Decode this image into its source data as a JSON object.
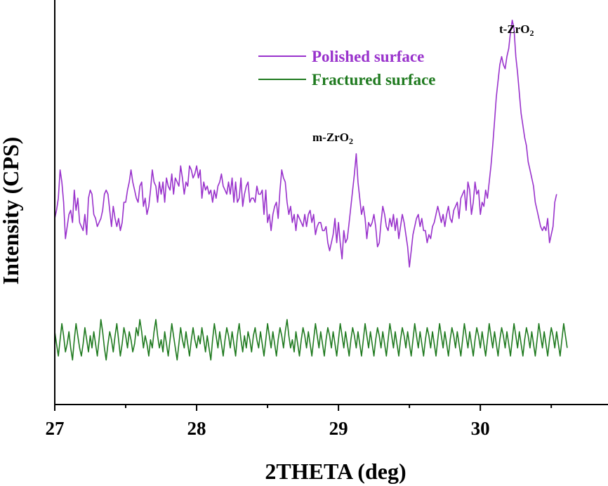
{
  "chart_data": {
    "type": "line",
    "title": "",
    "xlabel": "2THETA (deg)",
    "ylabel": "Intensity (CPS)",
    "xlim": [
      27,
      30.9
    ],
    "ylim": [
      0,
      1
    ],
    "x_ticks": [
      "27",
      "28",
      "29",
      "30"
    ],
    "y_ticks_shown": false,
    "grid": false,
    "legend_position": "top-center",
    "annotations": [
      {
        "text": "m-ZrO",
        "subscript": "2",
        "x": 29.0,
        "y": 0.67
      },
      {
        "text": "t-ZrO",
        "subscript": "2",
        "x": 30.3,
        "y": 0.97
      }
    ],
    "series": [
      {
        "name": "Polished surface",
        "color": "#9932CC",
        "x_start": 27.0,
        "x_step": 0.0125,
        "values": [
          0.46,
          0.48,
          0.51,
          0.58,
          0.55,
          0.5,
          0.41,
          0.44,
          0.47,
          0.48,
          0.45,
          0.53,
          0.48,
          0.51,
          0.45,
          0.44,
          0.43,
          0.47,
          0.42,
          0.51,
          0.53,
          0.52,
          0.47,
          0.46,
          0.44,
          0.45,
          0.46,
          0.48,
          0.52,
          0.53,
          0.52,
          0.48,
          0.44,
          0.49,
          0.46,
          0.44,
          0.46,
          0.43,
          0.45,
          0.5,
          0.5,
          0.53,
          0.55,
          0.58,
          0.55,
          0.53,
          0.51,
          0.5,
          0.54,
          0.55,
          0.49,
          0.51,
          0.47,
          0.49,
          0.53,
          0.58,
          0.55,
          0.54,
          0.5,
          0.55,
          0.52,
          0.55,
          0.5,
          0.56,
          0.54,
          0.53,
          0.57,
          0.52,
          0.56,
          0.55,
          0.54,
          0.59,
          0.56,
          0.52,
          0.55,
          0.54,
          0.59,
          0.58,
          0.56,
          0.57,
          0.59,
          0.56,
          0.58,
          0.51,
          0.55,
          0.53,
          0.54,
          0.52,
          0.53,
          0.5,
          0.53,
          0.51,
          0.54,
          0.55,
          0.57,
          0.54,
          0.53,
          0.52,
          0.55,
          0.52,
          0.56,
          0.5,
          0.55,
          0.5,
          0.51,
          0.56,
          0.49,
          0.52,
          0.54,
          0.55,
          0.5,
          0.51,
          0.51,
          0.5,
          0.54,
          0.52,
          0.52,
          0.53,
          0.47,
          0.53,
          0.45,
          0.47,
          0.43,
          0.47,
          0.49,
          0.5,
          0.46,
          0.53,
          0.58,
          0.56,
          0.55,
          0.5,
          0.47,
          0.49,
          0.45,
          0.47,
          0.43,
          0.47,
          0.46,
          0.45,
          0.44,
          0.47,
          0.44,
          0.47,
          0.48,
          0.45,
          0.47,
          0.42,
          0.44,
          0.45,
          0.45,
          0.43,
          0.43,
          0.44,
          0.4,
          0.38,
          0.4,
          0.42,
          0.46,
          0.4,
          0.45,
          0.4,
          0.36,
          0.43,
          0.4,
          0.41,
          0.45,
          0.49,
          0.53,
          0.57,
          0.62,
          0.55,
          0.51,
          0.47,
          0.49,
          0.46,
          0.41,
          0.45,
          0.44,
          0.45,
          0.47,
          0.44,
          0.39,
          0.4,
          0.45,
          0.49,
          0.47,
          0.44,
          0.43,
          0.46,
          0.44,
          0.47,
          0.43,
          0.46,
          0.41,
          0.44,
          0.47,
          0.45,
          0.42,
          0.39,
          0.34,
          0.38,
          0.42,
          0.44,
          0.46,
          0.47,
          0.44,
          0.46,
          0.43,
          0.43,
          0.4,
          0.42,
          0.41,
          0.44,
          0.45,
          0.47,
          0.49,
          0.47,
          0.45,
          0.47,
          0.44,
          0.47,
          0.49,
          0.46,
          0.45,
          0.48,
          0.49,
          0.5,
          0.46,
          0.51,
          0.52,
          0.53,
          0.48,
          0.55,
          0.53,
          0.47,
          0.5,
          0.55,
          0.52,
          0.53,
          0.47,
          0.5,
          0.49,
          0.53,
          0.51,
          0.55,
          0.59,
          0.64,
          0.7,
          0.76,
          0.8,
          0.84,
          0.86,
          0.84,
          0.83,
          0.86,
          0.88,
          0.92,
          0.95,
          0.93,
          0.86,
          0.82,
          0.77,
          0.72,
          0.69,
          0.66,
          0.64,
          0.6,
          0.58,
          0.56,
          0.54,
          0.5,
          0.48,
          0.46,
          0.44,
          0.43,
          0.44,
          0.43,
          0.46,
          0.4,
          0.42,
          0.44,
          0.5,
          0.52
        ]
      },
      {
        "name": "Fractured surface",
        "color": "#1F7A1F",
        "x_start": 27.0,
        "x_step": 0.0125,
        "values": [
          0.18,
          0.15,
          0.12,
          0.16,
          0.2,
          0.17,
          0.13,
          0.15,
          0.18,
          0.14,
          0.11,
          0.16,
          0.2,
          0.17,
          0.14,
          0.12,
          0.15,
          0.19,
          0.16,
          0.13,
          0.17,
          0.14,
          0.18,
          0.15,
          0.12,
          0.16,
          0.21,
          0.18,
          0.14,
          0.11,
          0.15,
          0.18,
          0.16,
          0.13,
          0.17,
          0.2,
          0.16,
          0.12,
          0.15,
          0.19,
          0.17,
          0.14,
          0.18,
          0.16,
          0.13,
          0.15,
          0.19,
          0.17,
          0.21,
          0.18,
          0.14,
          0.17,
          0.15,
          0.12,
          0.16,
          0.14,
          0.18,
          0.21,
          0.17,
          0.14,
          0.16,
          0.13,
          0.18,
          0.15,
          0.12,
          0.16,
          0.2,
          0.17,
          0.14,
          0.11,
          0.15,
          0.19,
          0.16,
          0.14,
          0.18,
          0.15,
          0.12,
          0.16,
          0.19,
          0.16,
          0.14,
          0.17,
          0.15,
          0.19,
          0.16,
          0.13,
          0.17,
          0.14,
          0.11,
          0.16,
          0.2,
          0.17,
          0.14,
          0.18,
          0.15,
          0.12,
          0.16,
          0.19,
          0.17,
          0.14,
          0.18,
          0.15,
          0.12,
          0.17,
          0.2,
          0.16,
          0.13,
          0.17,
          0.14,
          0.18,
          0.16,
          0.13,
          0.17,
          0.19,
          0.16,
          0.14,
          0.18,
          0.15,
          0.12,
          0.16,
          0.2,
          0.17,
          0.14,
          0.18,
          0.15,
          0.12,
          0.16,
          0.19,
          0.17,
          0.14,
          0.18,
          0.21,
          0.17,
          0.14,
          0.16,
          0.13,
          0.18,
          0.15,
          0.12,
          0.16,
          0.19,
          0.17,
          0.14,
          0.18,
          0.15,
          0.12,
          0.16,
          0.2,
          0.17,
          0.14,
          0.18,
          0.15,
          0.12,
          0.16,
          0.19,
          0.17,
          0.14,
          0.18,
          0.15,
          0.12,
          0.16,
          0.2,
          0.17,
          0.14,
          0.18,
          0.15,
          0.12,
          0.16,
          0.19,
          0.17,
          0.14,
          0.18,
          0.15,
          0.12,
          0.16,
          0.2,
          0.17,
          0.14,
          0.18,
          0.15,
          0.12,
          0.16,
          0.19,
          0.17,
          0.14,
          0.18,
          0.15,
          0.12,
          0.16,
          0.2,
          0.17,
          0.14,
          0.18,
          0.15,
          0.12,
          0.16,
          0.19,
          0.17,
          0.14,
          0.18,
          0.15,
          0.12,
          0.16,
          0.2,
          0.17,
          0.14,
          0.18,
          0.15,
          0.12,
          0.16,
          0.19,
          0.17,
          0.14,
          0.18,
          0.15,
          0.12,
          0.16,
          0.2,
          0.17,
          0.14,
          0.18,
          0.15,
          0.12,
          0.16,
          0.19,
          0.17,
          0.14,
          0.18,
          0.15,
          0.12,
          0.16,
          0.2,
          0.17,
          0.14,
          0.18,
          0.15,
          0.12,
          0.16,
          0.19,
          0.17,
          0.14,
          0.18,
          0.15,
          0.12,
          0.16,
          0.2,
          0.17,
          0.14,
          0.18,
          0.15,
          0.12,
          0.16,
          0.19,
          0.17,
          0.14,
          0.18,
          0.15,
          0.12,
          0.16,
          0.2,
          0.17,
          0.14,
          0.18,
          0.15,
          0.12,
          0.16,
          0.19,
          0.17,
          0.14,
          0.18,
          0.15,
          0.12,
          0.16,
          0.2,
          0.17,
          0.14,
          0.18,
          0.15,
          0.12,
          0.16,
          0.19,
          0.17,
          0.14,
          0.18,
          0.15,
          0.12,
          0.16,
          0.2,
          0.17,
          0.14
        ]
      }
    ]
  }
}
